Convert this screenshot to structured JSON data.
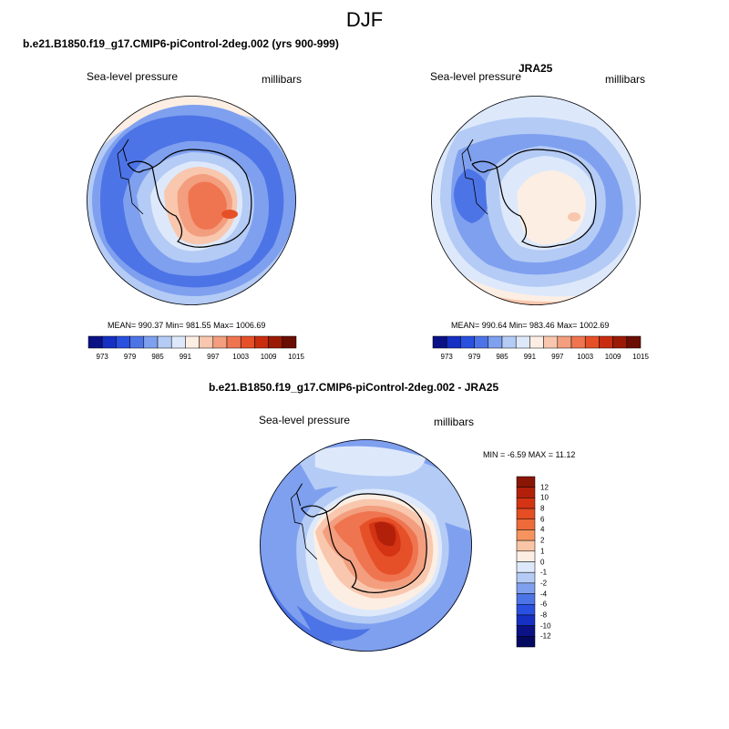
{
  "figure": {
    "title": "DJF"
  },
  "panels": [
    {
      "title": "b.e21.B1850.f19_g17.CMIP6-piControl-2deg.002 (yrs 900-999)",
      "variable": "Sea-level pressure",
      "units": "millibars",
      "stats": "MEAN= 990.37  Min= 981.55  Max= 1006.69"
    },
    {
      "title": "JRA25",
      "variable": "Sea-level pressure",
      "units": "millibars",
      "stats": "MEAN= 990.64  Min= 983.46  Max= 1002.69"
    },
    {
      "title": "b.e21.B1850.f19_g17.CMIP6-piControl-2deg.002 - JRA25",
      "variable": "Sea-level pressure",
      "units": "millibars",
      "stats": "MIN =  -6.59 MAX =  11.12"
    }
  ],
  "colorbars": {
    "abs": {
      "labels": [
        "973",
        "979",
        "985",
        "991",
        "997",
        "1003",
        "1009",
        "1015"
      ],
      "colors": [
        "#0a1285",
        "#1530c2",
        "#2a50e0",
        "#4d74e6",
        "#7fa0ef",
        "#b4cbf5",
        "#dde9fb",
        "#fdeee3",
        "#f8c7ae",
        "#f39e7e",
        "#ef7550",
        "#e65028",
        "#c82d10",
        "#9a1a05",
        "#6a0d02"
      ]
    },
    "diff": {
      "labels": [
        "12",
        "10",
        "8",
        "6",
        "4",
        "2",
        "1",
        "0",
        "-1",
        "-2",
        "-4",
        "-6",
        "-8",
        "-10",
        "-12"
      ],
      "colors": [
        "#8a1505",
        "#b2200a",
        "#d43413",
        "#e54d22",
        "#ef6a3a",
        "#f6945f",
        "#f9c5a6",
        "#fdeee3",
        "#dde9fb",
        "#b4cbf5",
        "#7fa0ef",
        "#4d74e6",
        "#2a50e0",
        "#1530c2",
        "#0a1285",
        "#030a60"
      ]
    }
  }
}
